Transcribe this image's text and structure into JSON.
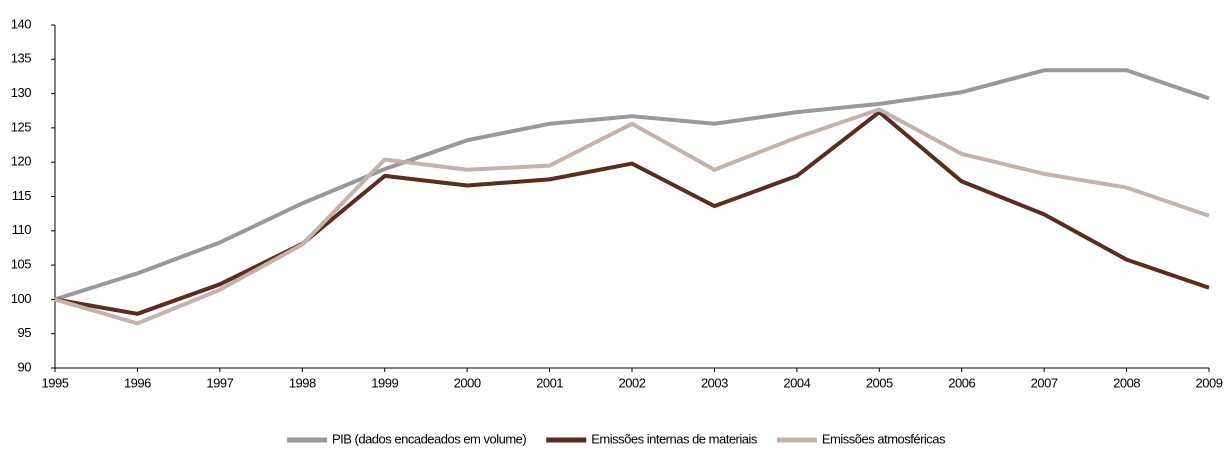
{
  "chart_data": {
    "type": "line",
    "x": [
      1995,
      1996,
      1997,
      1998,
      1999,
      2000,
      2001,
      2002,
      2003,
      2004,
      2005,
      2006,
      2007,
      2008,
      2009
    ],
    "series": [
      {
        "name": "PIB (dados encadeados em volume)",
        "color": "#999999",
        "values": [
          100,
          103.8,
          108.3,
          114,
          119,
          123.2,
          125.6,
          126.7,
          125.6,
          127.3,
          128.5,
          130.2,
          133.4,
          133.4,
          129.3
        ]
      },
      {
        "name": "Emissões internas de materiais",
        "color": "#5c2c1e",
        "values": [
          100,
          97.9,
          102.2,
          108.1,
          118,
          116.6,
          117.5,
          119.8,
          113.6,
          118,
          127.3,
          117.2,
          112.4,
          105.8,
          101.7
        ]
      },
      {
        "name": "Emissões atmosféricas",
        "color": "#c4b2ac",
        "values": [
          100,
          96.5,
          101.4,
          108,
          120.4,
          118.9,
          119.5,
          125.6,
          118.9,
          123.6,
          127.7,
          121.2,
          118.3,
          116.3,
          112.2
        ]
      }
    ],
    "xlim": [
      1995,
      2009
    ],
    "xticks": [
      1995,
      1996,
      1997,
      1998,
      1999,
      2000,
      2001,
      2002,
      2003,
      2004,
      2005,
      2006,
      2007,
      2008,
      2009
    ],
    "ylim": [
      90,
      140
    ],
    "yticks": [
      90,
      95,
      100,
      105,
      110,
      115,
      120,
      125,
      130,
      135,
      140
    ],
    "grid": false,
    "legend": "bottom"
  }
}
